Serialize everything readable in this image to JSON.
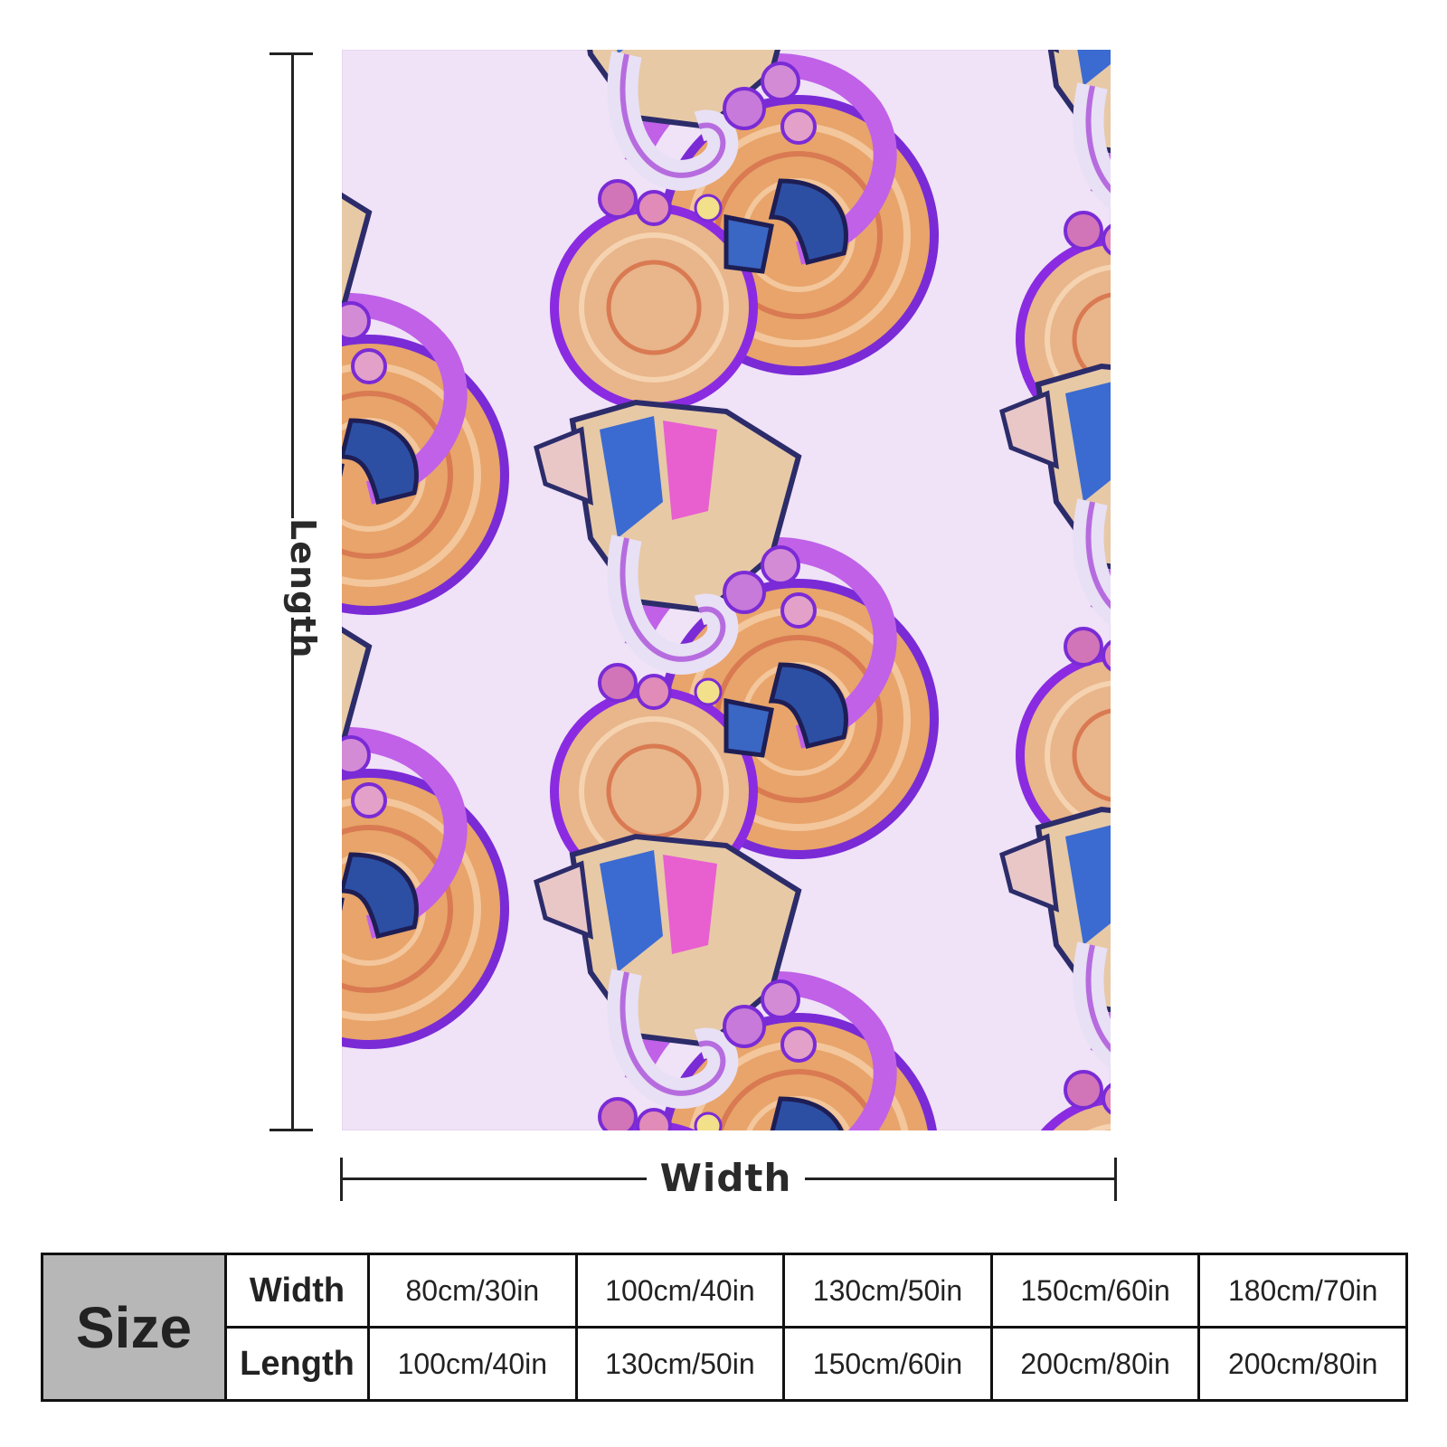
{
  "image": {
    "background_color": "#ffffff",
    "blanket_color": "#f0e2f7",
    "artwork_palette": [
      "#8a2be2",
      "#c061e8",
      "#e8a46a",
      "#2c4fa3",
      "#e7c9a6",
      "#d94b6a"
    ]
  },
  "dimensions": {
    "length_label": "Length",
    "width_label": "Width"
  },
  "size_table": {
    "title": "Size",
    "row_headers": [
      "Width",
      "Length"
    ],
    "widths": [
      "80cm/30in",
      "100cm/40in",
      "130cm/50in",
      "150cm/60in",
      "180cm/70in"
    ],
    "lengths": [
      "100cm/40in",
      "130cm/50in",
      "150cm/60in",
      "200cm/80in",
      "200cm/80in"
    ]
  }
}
